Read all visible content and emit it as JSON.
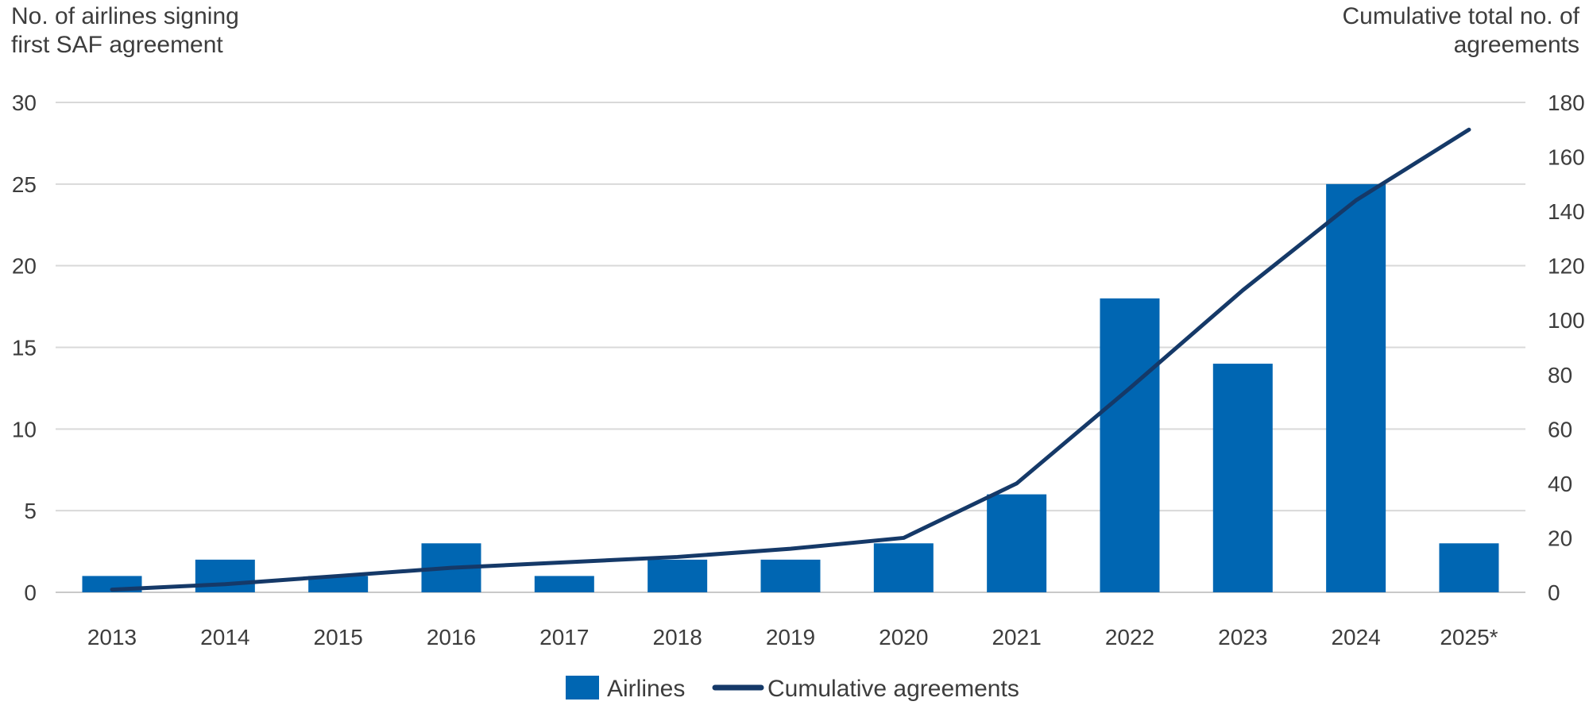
{
  "chart_data": {
    "type": "combo-bar-line",
    "categories": [
      "2013",
      "2014",
      "2015",
      "2016",
      "2017",
      "2018",
      "2019",
      "2020",
      "2021",
      "2022",
      "2023",
      "2024",
      "2025*"
    ],
    "series": [
      {
        "name": "Airlines",
        "type": "bar",
        "axis": "left",
        "color": "#0066b2",
        "values": [
          1,
          2,
          1,
          3,
          1,
          2,
          2,
          3,
          6,
          18,
          14,
          25,
          3
        ]
      },
      {
        "name": "Cumulative agreements",
        "type": "line",
        "axis": "right",
        "color": "#153968",
        "values": [
          1,
          3,
          6,
          9,
          11,
          13,
          16,
          20,
          40,
          75,
          111,
          144,
          170
        ]
      }
    ],
    "left_axis": {
      "title_line1": "No. of airlines signing",
      "title_line2": "first SAF agreement",
      "min": 0,
      "max": 30,
      "ticks": [
        0,
        5,
        10,
        15,
        20,
        25,
        30
      ]
    },
    "right_axis": {
      "title_line1": "Cumulative total no. of",
      "title_line2": "agreements",
      "min": 0,
      "max": 180,
      "ticks": [
        0,
        20,
        40,
        60,
        80,
        100,
        120,
        140,
        160,
        180
      ]
    },
    "grid": "horizontal gridlines at left-axis ticks",
    "legend_position": "bottom-center"
  },
  "colors": {
    "background": "#ffffff",
    "text": "#3d3d3d",
    "gridline": "#d9d9d9",
    "axis_line": "#c9c9c9",
    "bar": "#0066b2",
    "line": "#153968"
  }
}
